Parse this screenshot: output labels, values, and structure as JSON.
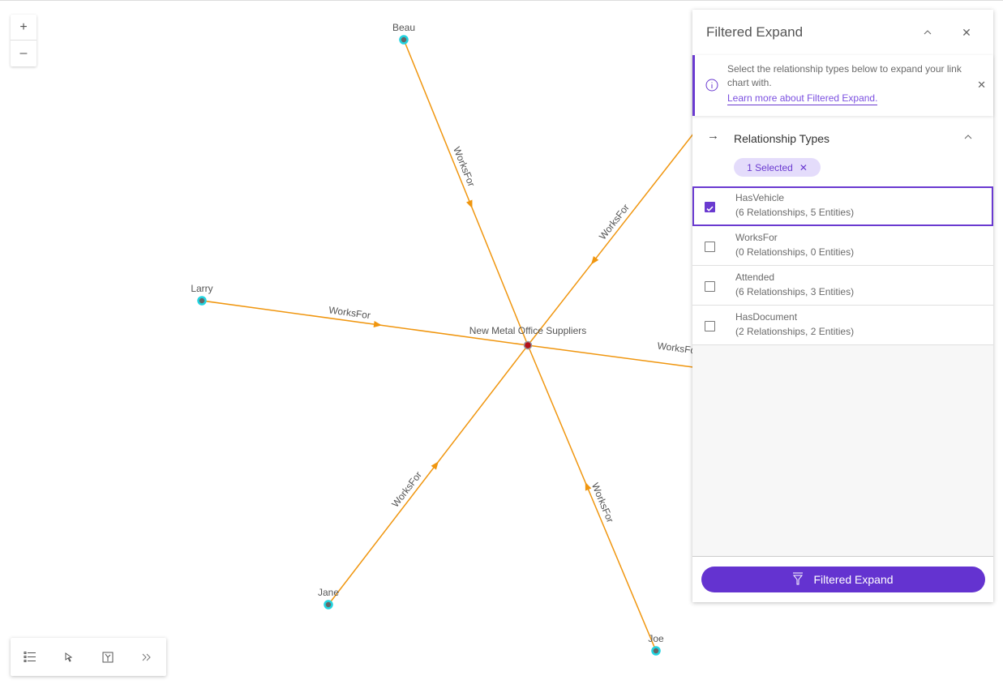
{
  "graph": {
    "edge_color": "#f0960f",
    "center_node": {
      "label": "New Metal Office Suppliers",
      "color": "#b3121a"
    },
    "nodes": [
      {
        "label": "Beau",
        "color": "#21d4e0"
      },
      {
        "label": "Larry",
        "color": "#21d4e0"
      },
      {
        "label": "Jane",
        "color": "#21d4e0"
      },
      {
        "label": "Joe",
        "color": "#21d4e0"
      }
    ],
    "edges": [
      {
        "from": "Beau",
        "label": "WorksFor"
      },
      {
        "from": "Larry",
        "label": "WorksFor"
      },
      {
        "from": "Jane",
        "label": "WorksFor"
      },
      {
        "from": "Joe",
        "label": "WorksFor"
      },
      {
        "from": "",
        "label": "WorksFor"
      },
      {
        "from": "",
        "label": "WorksFor"
      }
    ]
  },
  "zoom": {
    "in": "+",
    "out": "–"
  },
  "toolbar": {
    "icons": [
      "legend-list-icon",
      "select-cursor-icon",
      "layout-icon",
      "expand-chevrons-icon"
    ],
    "more": "»"
  },
  "panel": {
    "title": "Filtered Expand",
    "notice": {
      "text": "Select the relationship types below to expand your link chart with.",
      "link": "Learn more about Filtered Expand."
    },
    "section": {
      "title": "Relationship Types",
      "chip": "1 Selected"
    },
    "items": [
      {
        "name": "HasVehicle",
        "count": "(6 Relationships, 5 Entities)",
        "checked": true
      },
      {
        "name": "WorksFor",
        "count": "(0 Relationships, 0 Entities)",
        "checked": false
      },
      {
        "name": "Attended",
        "count": "(6 Relationships, 3 Entities)",
        "checked": false
      },
      {
        "name": "HasDocument",
        "count": "(2 Relationships, 2 Entities)",
        "checked": false
      }
    ],
    "button": "Filtered Expand",
    "accent": "#6433d0"
  }
}
